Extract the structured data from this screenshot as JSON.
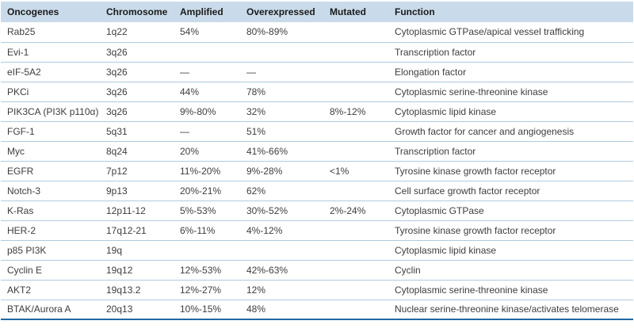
{
  "colors": {
    "header_bg": "#c9dbea",
    "row_divider": "#aecbe0",
    "bottom_rule": "#2268a2",
    "header_text": "#1a1a1a",
    "body_text": "#3d3d3d"
  },
  "table": {
    "columns": [
      "Oncogenes",
      "Chromosome",
      "Amplified",
      "Overexpressed",
      "Mutated",
      "Function"
    ],
    "rows": [
      {
        "oncogene": "Rab25",
        "chromosome": "1q22",
        "amplified": "54%",
        "overexpressed": "80%-89%",
        "mutated": "",
        "function": "Cytoplasmic GTPase/apical vessel trafficking"
      },
      {
        "oncogene": "Evi-1",
        "chromosome": "3q26",
        "amplified": "",
        "overexpressed": "",
        "mutated": "",
        "function": "Transcription factor"
      },
      {
        "oncogene": "eIF-5A2",
        "chromosome": "3q26",
        "amplified": "—",
        "overexpressed": "—",
        "mutated": "",
        "function": "Elongation factor"
      },
      {
        "oncogene": "PKCi",
        "chromosome": "3q26",
        "amplified": "44%",
        "overexpressed": "78%",
        "mutated": "",
        "function": "Cytoplasmic serine-threonine kinase"
      },
      {
        "oncogene": "PIK3CA (PI3K p110α)",
        "chromosome": "3q26",
        "amplified": "9%-80%",
        "overexpressed": "32%",
        "mutated": "8%-12%",
        "function": "Cytoplasmic lipid kinase"
      },
      {
        "oncogene": "FGF-1",
        "chromosome": "5q31",
        "amplified": "—",
        "overexpressed": "51%",
        "mutated": "",
        "function": "Growth factor for cancer and angiogenesis"
      },
      {
        "oncogene": "Myc",
        "chromosome": "8q24",
        "amplified": "20%",
        "overexpressed": "41%-66%",
        "mutated": "",
        "function": "Transcription factor"
      },
      {
        "oncogene": "EGFR",
        "chromosome": "7p12",
        "amplified": "11%-20%",
        "overexpressed": "9%-28%",
        "mutated": "<1%",
        "function": "Tyrosine kinase growth factor receptor"
      },
      {
        "oncogene": "Notch-3",
        "chromosome": "9p13",
        "amplified": "20%-21%",
        "overexpressed": "62%",
        "mutated": "",
        "function": "Cell surface growth factor receptor"
      },
      {
        "oncogene": "K-Ras",
        "chromosome": "12p11-12",
        "amplified": "5%-53%",
        "overexpressed": "30%-52%",
        "mutated": "2%-24%",
        "function": "Cytoplasmic GTPase"
      },
      {
        "oncogene": "HER-2",
        "chromosome": "17q12-21",
        "amplified": "6%-11%",
        "overexpressed": "4%-12%",
        "mutated": "",
        "function": "Tyrosine kinase growth factor receptor"
      },
      {
        "oncogene": "p85 PI3K",
        "chromosome": "19q",
        "amplified": "",
        "overexpressed": "",
        "mutated": "",
        "function": "Cytoplasmic lipid kinase"
      },
      {
        "oncogene": "Cyclin E",
        "chromosome": "19q12",
        "amplified": "12%-53%",
        "overexpressed": "42%-63%",
        "mutated": "",
        "function": "Cyclin"
      },
      {
        "oncogene": "AKT2",
        "chromosome": "19q13.2",
        "amplified": "12%-27%",
        "overexpressed": "12%",
        "mutated": "",
        "function": "Cytoplasmic serine-threonine kinase"
      },
      {
        "oncogene": "BTAK/Aurora A",
        "chromosome": "20q13",
        "amplified": "10%-15%",
        "overexpressed": "48%",
        "mutated": "",
        "function": "Nuclear serine-threonine kinase/activates telomerase"
      }
    ]
  }
}
